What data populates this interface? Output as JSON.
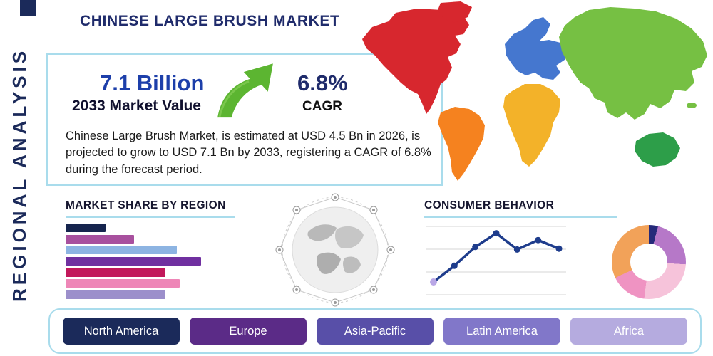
{
  "page": {
    "title": "CHINESE LARGE BRUSH MARKET",
    "side_label": "REGIONAL ANALYSIS"
  },
  "highlight": {
    "market_value": "7.1 Billion",
    "market_value_caption": "2033 Market Value",
    "cagr_value": "6.8%",
    "cagr_label": "CAGR"
  },
  "description": {
    "text": "Chinese Large Brush Market, is estimated at USD 4.5 Bn in 2026, is projected to grow to USD 7.1 Bn by 2033, registering a CAGR of 6.8% during the forecast period."
  },
  "icons": {
    "growth_arrow": "growth-arrow-icon",
    "globe": "network-globe-icon"
  },
  "theme": {
    "accent_navy": "#1b2a5a",
    "accent_blue": "#1d3faa",
    "box_border": "#a9dcec",
    "arrow_green": "#5cb531"
  },
  "chart_data": [
    {
      "type": "bar",
      "title": "MARKET SHARE BY REGION",
      "orientation": "horizontal",
      "values": [
        28,
        48,
        78,
        95,
        70,
        80,
        70
      ],
      "value_note": "estimated percent of axis width, no tick labels shown",
      "colors": [
        "#16254e",
        "#a8509e",
        "#8db4e2",
        "#7030a0",
        "#c2185b",
        "#ee86b7",
        "#9c8fcb"
      ],
      "xlim": [
        0,
        100
      ],
      "grid": false
    },
    {
      "type": "line",
      "title": "CONSUMER BEHAVIOR",
      "x": [
        1,
        2,
        3,
        4,
        5,
        6,
        7
      ],
      "values": [
        1.5,
        3.4,
        5.6,
        7.2,
        5.3,
        6.4,
        5.4
      ],
      "ylim": [
        0,
        8
      ],
      "grid": true,
      "line_color": "#1e3c8c",
      "marker_color": "#1e3c8c",
      "first_marker_color": "#b9a7e6"
    },
    {
      "type": "pie",
      "donut": true,
      "slices": [
        {
          "value": 4,
          "color": "#252a7a"
        },
        {
          "value": 22,
          "color": "#b678c8"
        },
        {
          "value": 26,
          "color": "#f6c3da"
        },
        {
          "value": 16,
          "color": "#ef93c2"
        },
        {
          "value": 32,
          "color": "#f2a259"
        }
      ]
    }
  ],
  "map": {
    "continent_colors": {
      "north_america": "#d7272e",
      "greenland": "#d7272e",
      "south_america": "#f5821f",
      "europe": "#4577cf",
      "africa": "#f3b229",
      "asia": "#76c043",
      "australia": "#2d9e49"
    }
  },
  "regions": [
    {
      "label": "North America",
      "color": "#1b2a5a"
    },
    {
      "label": "Europe",
      "color": "#5b2b87"
    },
    {
      "label": "Asia-Pacific",
      "color": "#584fa8"
    },
    {
      "label": "Latin America",
      "color": "#8177c9"
    },
    {
      "label": "Africa",
      "color": "#b5abdf"
    }
  ]
}
